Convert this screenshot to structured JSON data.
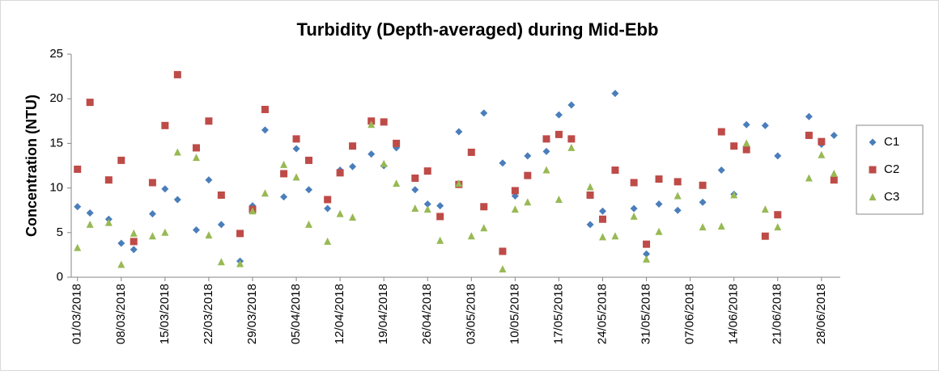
{
  "chart_data": {
    "type": "scatter",
    "title": "Turbidity (Depth-averaged) during Mid-Ebb",
    "y_label": "Concentration (NTU)",
    "x": [
      "01/03/2018",
      "03/03/2018",
      "06/03/2018",
      "08/03/2018",
      "10/03/2018",
      "13/03/2018",
      "15/03/2018",
      "17/03/2018",
      "20/03/2018",
      "22/03/2018",
      "24/03/2018",
      "27/03/2018",
      "29/03/2018",
      "31/03/2018",
      "03/04/2018",
      "05/04/2018",
      "07/04/2018",
      "10/04/2018",
      "12/04/2018",
      "14/04/2018",
      "17/04/2018",
      "19/04/2018",
      "21/04/2018",
      "24/04/2018",
      "26/04/2018",
      "28/04/2018",
      "01/05/2018",
      "03/05/2018",
      "05/05/2018",
      "08/05/2018",
      "10/05/2018",
      "12/05/2018",
      "15/05/2018",
      "17/05/2018",
      "19/05/2018",
      "22/05/2018",
      "24/05/2018",
      "26/05/2018",
      "29/05/2018",
      "31/05/2018",
      "02/06/2018",
      "05/06/2018",
      "09/06/2018",
      "12/06/2018",
      "14/06/2018",
      "16/06/2018",
      "19/06/2018",
      "21/06/2018",
      "26/06/2018",
      "28/06/2018",
      "30/06/2018"
    ],
    "series": [
      {
        "name": "C1",
        "color": "#4a7ebb",
        "marker": "diamond",
        "values": [
          7.9,
          7.2,
          6.5,
          3.8,
          3.1,
          7.1,
          9.9,
          8.7,
          5.3,
          10.9,
          5.9,
          1.8,
          8.0,
          16.5,
          9.0,
          14.4,
          9.8,
          7.7,
          12.0,
          12.4,
          13.8,
          12.5,
          14.5,
          9.8,
          8.2,
          8.0,
          16.3,
          14.0,
          18.4,
          12.8,
          9.1,
          13.6,
          14.1,
          18.2,
          19.3,
          5.9,
          7.4,
          20.6,
          7.7,
          2.6,
          8.2,
          7.5,
          8.4,
          12.0,
          9.3,
          17.1,
          17.0,
          13.6,
          18.0,
          14.9,
          15.9
        ]
      },
      {
        "name": "C2",
        "color": "#be4b48",
        "marker": "square",
        "values": [
          12.1,
          19.6,
          10.9,
          13.1,
          4.0,
          10.6,
          17.0,
          22.7,
          14.5,
          17.5,
          9.2,
          4.9,
          7.6,
          18.8,
          11.6,
          15.5,
          13.1,
          8.7,
          11.7,
          14.7,
          17.5,
          17.4,
          15.0,
          11.1,
          11.9,
          6.8,
          10.4,
          14.0,
          7.9,
          2.9,
          9.7,
          11.4,
          15.5,
          16.0,
          15.5,
          9.2,
          6.5,
          12.0,
          10.6,
          3.7,
          11.0,
          10.7,
          10.3,
          16.3,
          14.7,
          14.3,
          4.6,
          7.0,
          15.9,
          15.2,
          10.9
        ]
      },
      {
        "name": "C3",
        "color": "#98b954",
        "marker": "triangle",
        "values": [
          3.3,
          5.9,
          6.1,
          1.4,
          4.9,
          4.6,
          5.0,
          14.0,
          13.4,
          4.7,
          1.7,
          1.5,
          7.4,
          9.4,
          12.6,
          11.2,
          5.9,
          4.0,
          7.1,
          6.7,
          17.1,
          12.7,
          10.5,
          7.7,
          7.6,
          4.1,
          10.5,
          4.6,
          5.5,
          0.9,
          7.6,
          8.4,
          12.0,
          8.7,
          14.5,
          10.1,
          4.5,
          4.6,
          6.8,
          2.0,
          5.1,
          9.1,
          5.6,
          5.7,
          9.2,
          15.0,
          7.6,
          5.6,
          11.1,
          13.7,
          11.6
        ]
      }
    ],
    "xlim": [
      "28/02/2018",
      "01/07/2018"
    ],
    "xticks": [
      "01/03/2018",
      "08/03/2018",
      "15/03/2018",
      "22/03/2018",
      "29/03/2018",
      "05/04/2018",
      "12/04/2018",
      "19/04/2018",
      "26/04/2018",
      "03/05/2018",
      "10/05/2018",
      "17/05/2018",
      "24/05/2018",
      "31/05/2018",
      "07/06/2018",
      "14/06/2018",
      "21/06/2018",
      "28/06/2018"
    ],
    "ylim": [
      0,
      25
    ],
    "yticks": [
      0,
      5,
      10,
      15,
      20,
      25
    ],
    "grid": false,
    "legend": "right"
  }
}
